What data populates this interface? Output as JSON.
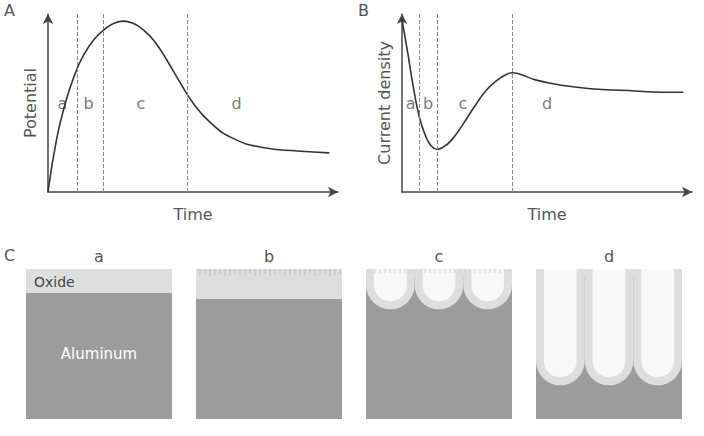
{
  "chart_data": [
    {
      "type": "line",
      "panel": "A",
      "x_label": "Time",
      "y_label": "Potential",
      "xlim": [
        0,
        100
      ],
      "ylim": [
        0,
        100
      ],
      "tick_labels": false,
      "grid": false,
      "color": "#333333",
      "x": [
        0,
        3,
        6,
        9,
        12,
        16,
        20,
        23,
        26,
        29,
        33,
        37,
        41,
        45,
        50,
        56,
        64,
        74,
        86,
        97
      ],
      "values": [
        0,
        30,
        50,
        65,
        76,
        86,
        92,
        95,
        96,
        95,
        91,
        84,
        74,
        63,
        50,
        39,
        30,
        25,
        23,
        22
      ],
      "dividers": [
        10,
        19,
        48
      ],
      "region_labels": [
        {
          "text": "a",
          "x": 5,
          "y": 50
        },
        {
          "text": "b",
          "x": 14,
          "y": 50
        },
        {
          "text": "c",
          "x": 32,
          "y": 50
        },
        {
          "text": "d",
          "x": 65,
          "y": 50
        }
      ]
    },
    {
      "type": "line",
      "panel": "B",
      "x_label": "Time",
      "y_label": "Current density",
      "xlim": [
        0,
        100
      ],
      "ylim": [
        0,
        100
      ],
      "tick_labels": false,
      "grid": false,
      "color": "#333333",
      "x": [
        0,
        2,
        4,
        6,
        8,
        10,
        12,
        14,
        17,
        21,
        25,
        29,
        33,
        36,
        38,
        41,
        46,
        55,
        65,
        78,
        90,
        97
      ],
      "values": [
        97,
        78,
        58,
        42,
        32,
        26,
        24,
        25,
        29,
        38,
        48,
        57,
        63,
        66,
        67,
        66,
        63,
        60,
        58,
        57,
        56,
        56
      ],
      "dividers": [
        6,
        12,
        38
      ],
      "region_labels": [
        {
          "text": "a",
          "x": 3,
          "y": 50
        },
        {
          "text": "b",
          "x": 9,
          "y": 50
        },
        {
          "text": "c",
          "x": 21,
          "y": 50
        },
        {
          "text": "d",
          "x": 50,
          "y": 50
        }
      ]
    }
  ],
  "panel_c": {
    "label": "C",
    "frames": [
      {
        "label": "a",
        "oxide_text": "Oxide",
        "metal_text": "Aluminum"
      },
      {
        "label": "b"
      },
      {
        "label": "c"
      },
      {
        "label": "d"
      }
    ]
  }
}
